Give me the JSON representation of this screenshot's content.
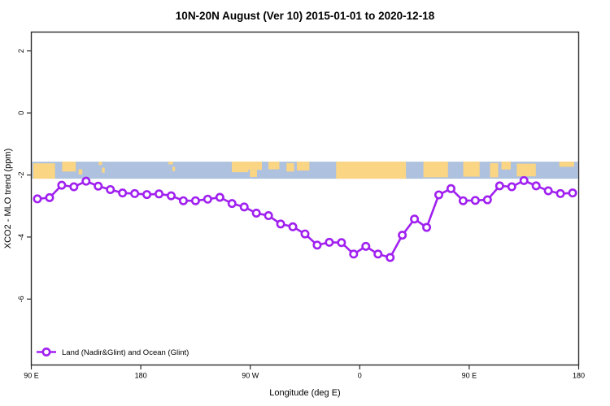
{
  "title": "10N-20N August (Ver 10)   2015-01-01 to 2020-12-18",
  "chart_data": {
    "type": "line",
    "title": "10N-20N August (Ver 10)   2015-01-01 to 2020-12-18",
    "xlabel": "Longitude (deg E)",
    "ylabel": "XCO2 - MLO trend (ppm)",
    "xlim": [
      90,
      540
    ],
    "ylim": [
      -8.1,
      2.6
    ],
    "grid": "off",
    "x_ticks": [
      {
        "pos": 90,
        "label": "90 E"
      },
      {
        "pos": 180,
        "label": "180"
      },
      {
        "pos": 270,
        "label": "90 W"
      },
      {
        "pos": 360,
        "label": "0"
      },
      {
        "pos": 450,
        "label": "90 E"
      },
      {
        "pos": 540,
        "label": "180"
      }
    ],
    "y_ticks": [
      {
        "value": 2,
        "label": "2"
      },
      {
        "value": 0,
        "label": "0"
      },
      {
        "value": -2,
        "label": "-2"
      },
      {
        "value": -4,
        "label": "-4"
      },
      {
        "value": -6,
        "label": "-6"
      }
    ],
    "series": [
      {
        "name": "Land (Nadir&Glint) and Ocean (Glint)",
        "color": "#A020F0",
        "marker": "open-circle",
        "x": [
          95,
          105,
          115,
          125,
          135,
          145,
          155,
          165,
          175,
          185,
          195,
          205,
          215,
          225,
          235,
          245,
          255,
          265,
          275,
          285,
          295,
          305,
          315,
          325,
          335,
          345,
          355,
          365,
          375,
          385,
          395,
          405,
          415,
          425,
          435,
          445,
          455,
          465,
          475,
          485,
          495,
          505,
          515,
          525,
          535
        ],
        "y": [
          -2.77,
          -2.73,
          -2.33,
          -2.38,
          -2.2,
          -2.36,
          -2.47,
          -2.58,
          -2.6,
          -2.63,
          -2.61,
          -2.67,
          -2.83,
          -2.83,
          -2.78,
          -2.72,
          -2.92,
          -3.03,
          -3.23,
          -3.31,
          -3.58,
          -3.67,
          -3.9,
          -4.26,
          -4.17,
          -4.18,
          -4.55,
          -4.3,
          -4.55,
          -4.66,
          -3.94,
          -3.42,
          -3.69,
          -2.64,
          -2.44,
          -2.83,
          -2.82,
          -2.8,
          -2.35,
          -2.38,
          -2.18,
          -2.35,
          -2.51,
          -2.6,
          -2.58
        ]
      }
    ],
    "legend": {
      "position": "bottom-left",
      "entries": [
        "Land (Nadir&Glint) and Ocean (Glint)"
      ]
    },
    "map_band": {
      "description": "10N-20N latitude coastline strip",
      "ocean_color": "#AEC1DE",
      "land_color": "#FAD584",
      "y_top_ppm": -1.57,
      "y_bottom_ppm": -2.12,
      "land_patches": [
        [
          0.002,
          0.04,
          0.1,
          0.9
        ],
        [
          0.055,
          0.025,
          0.0,
          0.58
        ],
        [
          0.085,
          0.007,
          0.45,
          0.3
        ],
        [
          0.122,
          0.006,
          0.0,
          0.2
        ],
        [
          0.128,
          0.005,
          0.35,
          0.3
        ],
        [
          0.25,
          0.008,
          0.0,
          0.16
        ],
        [
          0.257,
          0.005,
          0.3,
          0.25
        ],
        [
          0.366,
          0.03,
          0.0,
          0.62
        ],
        [
          0.393,
          0.028,
          0.0,
          0.48
        ],
        [
          0.399,
          0.013,
          0.48,
          0.42
        ],
        [
          0.433,
          0.02,
          0.0,
          0.45
        ],
        [
          0.466,
          0.014,
          0.08,
          0.5
        ],
        [
          0.485,
          0.023,
          0.0,
          0.52
        ],
        [
          0.557,
          0.128,
          0.0,
          1.0
        ],
        [
          0.717,
          0.045,
          0.0,
          0.92
        ],
        [
          0.79,
          0.03,
          0.0,
          0.88
        ],
        [
          0.839,
          0.015,
          0.08,
          0.84
        ],
        [
          0.86,
          0.017,
          0.0,
          0.46
        ],
        [
          0.888,
          0.035,
          0.12,
          0.74
        ],
        [
          0.966,
          0.027,
          0.0,
          0.3
        ]
      ]
    }
  }
}
